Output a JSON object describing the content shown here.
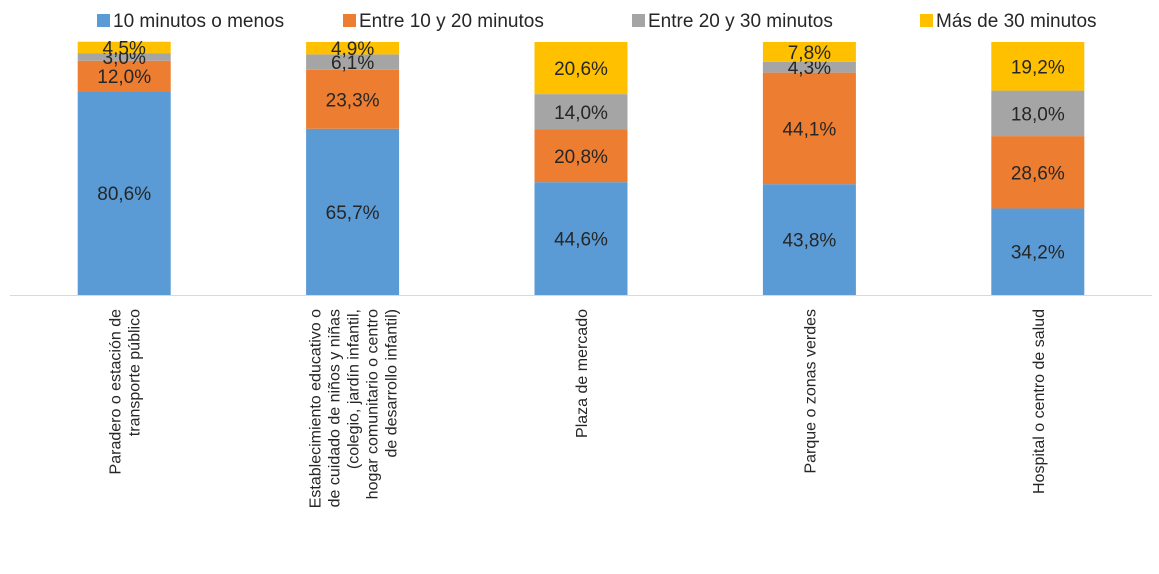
{
  "chart_data": {
    "type": "bar",
    "stacked": true,
    "percent_stacked": true,
    "categories": [
      "Paradero o estación de transporte público",
      "Establecimiento educativo o de cuidado de niños y niñas (colegio, jardín infantil, hogar comunitario o centro de desarrollo infantil)",
      "Plaza de mercado",
      "Parque o zonas verdes",
      "Hospital o centro de salud"
    ],
    "category_label_lines": [
      [
        "Paradero o estación de",
        "transporte público"
      ],
      [
        "Establecimiento educativo o",
        "de cuidado de niños y niñas",
        "(colegio, jardín infantil,",
        "hogar comunitario o centro",
        "de desarrollo infantil)"
      ],
      [
        "Plaza de mercado"
      ],
      [
        "Parque o zonas verdes"
      ],
      [
        "Hospital o centro de salud"
      ]
    ],
    "series": [
      {
        "name": "10 minutos o menos",
        "color": "#5B9BD5",
        "values": [
          80.6,
          65.7,
          44.6,
          43.8,
          34.2
        ],
        "labels": [
          "80,6%",
          "65,7%",
          "44,6%",
          "43,8%",
          "34,2%"
        ]
      },
      {
        "name": "Entre 10 y 20 minutos",
        "color": "#ED7D31",
        "values": [
          12.0,
          23.3,
          20.8,
          44.1,
          28.6
        ],
        "labels": [
          "12,0%",
          "23,3%",
          "20,8%",
          "44,1%",
          "28,6%"
        ]
      },
      {
        "name": "Entre 20 y 30 minutos",
        "color": "#A5A5A5",
        "values": [
          3.0,
          6.1,
          14.0,
          4.3,
          18.0
        ],
        "labels": [
          "3,0%",
          "6,1%",
          "14,0%",
          "4,3%",
          "18,0%"
        ]
      },
      {
        "name": "Más de 30 minutos",
        "color": "#FFC000",
        "values": [
          4.5,
          4.9,
          20.6,
          7.8,
          19.2
        ],
        "labels": [
          "4,5%",
          "4,9%",
          "20,6%",
          "7,8%",
          "19,2%"
        ]
      }
    ],
    "ylim": [
      0,
      100
    ],
    "grid": false,
    "legend_position": "top",
    "title": "",
    "xlabel": "",
    "ylabel": ""
  }
}
